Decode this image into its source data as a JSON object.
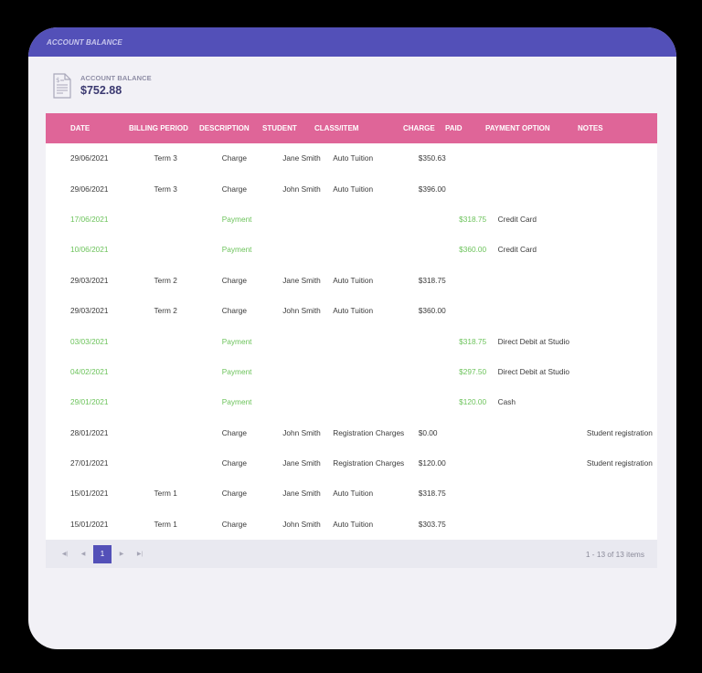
{
  "header": {
    "title": "ACCOUNT BALANCE"
  },
  "balance": {
    "label": "ACCOUNT BALANCE",
    "value": "$752.88",
    "icon": "invoice-dollar-icon"
  },
  "colors": {
    "header": "#5350b8",
    "table_header": "#df6598",
    "payment_text": "#6cc35b",
    "pager_active": "#5350b8"
  },
  "table": {
    "columns": [
      "DATE",
      "BILLING PERIOD",
      "DESCRIPTION",
      "STUDENT",
      "CLASS/ITEM",
      "CHARGE",
      "PAID",
      "PAYMENT OPTION",
      "NOTES"
    ],
    "rows": [
      {
        "date": "29/06/2021",
        "billing": "Term 3",
        "desc": "Charge",
        "student": "Jane Smith",
        "class": "Auto Tuition",
        "charge": "$350.63",
        "paid": "",
        "option": "",
        "notes": ""
      },
      {
        "date": "29/06/2021",
        "billing": "Term 3",
        "desc": "Charge",
        "student": "John Smith",
        "class": "Auto Tuition",
        "charge": "$396.00",
        "paid": "",
        "option": "",
        "notes": ""
      },
      {
        "date": "17/06/2021",
        "billing": "",
        "desc": "Payment",
        "student": "",
        "class": "",
        "charge": "",
        "paid": "$318.75",
        "option": "Credit Card",
        "notes": ""
      },
      {
        "date": "10/06/2021",
        "billing": "",
        "desc": "Payment",
        "student": "",
        "class": "",
        "charge": "",
        "paid": "$360.00",
        "option": "Credit Card",
        "notes": ""
      },
      {
        "date": "29/03/2021",
        "billing": "Term 2",
        "desc": "Charge",
        "student": "Jane Smith",
        "class": "Auto Tuition",
        "charge": "$318.75",
        "paid": "",
        "option": "",
        "notes": ""
      },
      {
        "date": "29/03/2021",
        "billing": "Term 2",
        "desc": "Charge",
        "student": "John Smith",
        "class": "Auto Tuition",
        "charge": "$360.00",
        "paid": "",
        "option": "",
        "notes": ""
      },
      {
        "date": "03/03/2021",
        "billing": "",
        "desc": "Payment",
        "student": "",
        "class": "",
        "charge": "",
        "paid": "$318.75",
        "option": "Direct Debit at Studio",
        "notes": ""
      },
      {
        "date": "04/02/2021",
        "billing": "",
        "desc": "Payment",
        "student": "",
        "class": "",
        "charge": "",
        "paid": "$297.50",
        "option": "Direct Debit at Studio",
        "notes": ""
      },
      {
        "date": "29/01/2021",
        "billing": "",
        "desc": "Payment",
        "student": "",
        "class": "",
        "charge": "",
        "paid": "$120.00",
        "option": "Cash",
        "notes": ""
      },
      {
        "date": "28/01/2021",
        "billing": "",
        "desc": "Charge",
        "student": "John Smith",
        "class": "Registration Charges",
        "charge": "$0.00",
        "paid": "",
        "option": "",
        "notes": "Student registration"
      },
      {
        "date": "27/01/2021",
        "billing": "",
        "desc": "Charge",
        "student": "Jane Smith",
        "class": "Registration Charges",
        "charge": "$120.00",
        "paid": "",
        "option": "",
        "notes": "Student registration"
      },
      {
        "date": "15/01/2021",
        "billing": "Term 1",
        "desc": "Charge",
        "student": "Jane Smith",
        "class": "Auto Tuition",
        "charge": "$318.75",
        "paid": "",
        "option": "",
        "notes": ""
      },
      {
        "date": "15/01/2021",
        "billing": "Term 1",
        "desc": "Charge",
        "student": "John Smith",
        "class": "Auto Tuition",
        "charge": "$303.75",
        "paid": "",
        "option": "",
        "notes": ""
      }
    ]
  },
  "pager": {
    "first_icon": "first-page-icon",
    "prev_icon": "prev-page-icon",
    "current_page": "1",
    "next_icon": "next-page-icon",
    "last_icon": "last-page-icon",
    "info": "1 - 13 of 13 items"
  }
}
